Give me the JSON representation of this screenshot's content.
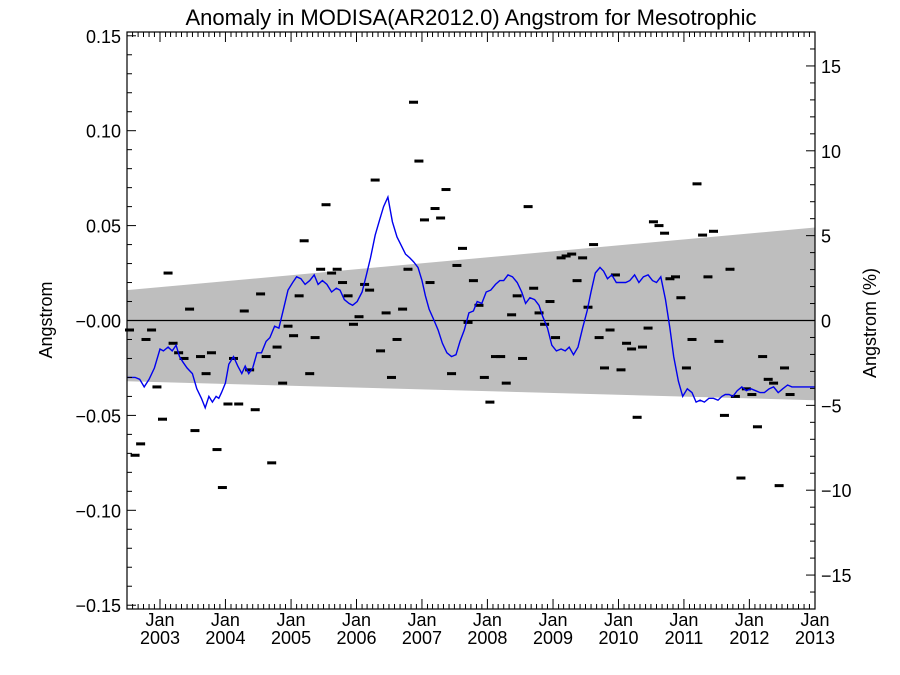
{
  "chart_data": {
    "type": "line",
    "title": "Anomaly in MODISA(AR2012.0) Angstrom for Mesotrophic",
    "ylabel": "Angstrom",
    "ylabel_right": "Angstrom (%)",
    "xlabel": "",
    "ylim": [
      -0.152,
      0.152
    ],
    "ylim_right": [
      -17,
      17
    ],
    "xlim": [
      "2002-07-01",
      "2013-01-01"
    ],
    "yticks": [
      -0.15,
      -0.1,
      -0.05,
      0.0,
      0.05,
      0.1,
      0.15
    ],
    "ytick_labels": [
      "−0.15",
      "−0.10",
      "−0.05",
      "−0.00",
      "0.05",
      "0.10",
      "0.15"
    ],
    "yticks_right": [
      -15,
      -10,
      -5,
      0,
      5,
      10,
      15
    ],
    "ytick_right_labels": [
      "−15",
      "−10",
      "−5",
      "0",
      "5",
      "10",
      "15"
    ],
    "xticks": [
      {
        "month": "Jan",
        "year": "2003",
        "date": "2003-01-01"
      },
      {
        "month": "Jan",
        "year": "2004",
        "date": "2004-01-01"
      },
      {
        "month": "Jan",
        "year": "2005",
        "date": "2005-01-01"
      },
      {
        "month": "Jan",
        "year": "2006",
        "date": "2006-01-01"
      },
      {
        "month": "Jan",
        "year": "2007",
        "date": "2007-01-01"
      },
      {
        "month": "Jan",
        "year": "2008",
        "date": "2008-01-01"
      },
      {
        "month": "Jan",
        "year": "2009",
        "date": "2009-01-01"
      },
      {
        "month": "Jan",
        "year": "2010",
        "date": "2010-01-01"
      },
      {
        "month": "Jan",
        "year": "2011",
        "date": "2011-01-01"
      },
      {
        "month": "Jan",
        "year": "2012",
        "date": "2012-01-01"
      },
      {
        "month": "Jan",
        "year": "2013",
        "date": "2013-01-01"
      }
    ],
    "band": {
      "x": [
        "2002-07-01",
        "2013-01-01"
      ],
      "upper": [
        0.016,
        0.049
      ],
      "lower": [
        -0.032,
        -0.042
      ],
      "color": "#bebebe"
    },
    "zero_line": 0.0,
    "series": [
      {
        "role": "monthly_anomaly_points",
        "color": "#000000",
        "marker": "errorbar",
        "points": [
          [
            "2002-07-15",
            -0.005
          ],
          [
            "2002-08-15",
            -0.071
          ],
          [
            "2002-09-15",
            -0.065
          ],
          [
            "2002-10-15",
            -0.01
          ],
          [
            "2002-11-15",
            -0.005
          ],
          [
            "2002-12-15",
            -0.035
          ],
          [
            "2003-01-15",
            -0.052
          ],
          [
            "2003-02-15",
            0.025
          ],
          [
            "2003-03-15",
            -0.012
          ],
          [
            "2003-04-15",
            -0.017
          ],
          [
            "2003-05-15",
            -0.02
          ],
          [
            "2003-06-15",
            0.006
          ],
          [
            "2003-07-15",
            -0.058
          ],
          [
            "2003-08-15",
            -0.019
          ],
          [
            "2003-09-15",
            -0.028
          ],
          [
            "2003-10-15",
            -0.017
          ],
          [
            "2003-11-15",
            -0.068
          ],
          [
            "2003-12-15",
            -0.088
          ],
          [
            "2004-01-15",
            -0.044
          ],
          [
            "2004-02-15",
            -0.02
          ],
          [
            "2004-03-15",
            -0.044
          ],
          [
            "2004-04-15",
            0.005
          ],
          [
            "2004-05-15",
            -0.026
          ],
          [
            "2004-06-15",
            -0.047
          ],
          [
            "2004-07-15",
            0.014
          ],
          [
            "2004-08-15",
            -0.019
          ],
          [
            "2004-09-15",
            -0.075
          ],
          [
            "2004-10-15",
            -0.014
          ],
          [
            "2004-11-15",
            -0.033
          ],
          [
            "2004-12-15",
            -0.003
          ],
          [
            "2005-01-15",
            -0.008
          ],
          [
            "2005-02-15",
            0.013
          ],
          [
            "2005-03-15",
            0.042
          ],
          [
            "2005-04-15",
            -0.028
          ],
          [
            "2005-05-15",
            -0.009
          ],
          [
            "2005-06-15",
            0.027
          ],
          [
            "2005-07-15",
            0.061
          ],
          [
            "2005-08-15",
            0.025
          ],
          [
            "2005-09-15",
            0.027
          ],
          [
            "2005-10-15",
            0.02
          ],
          [
            "2005-11-15",
            0.013
          ],
          [
            "2005-12-15",
            -0.002
          ],
          [
            "2006-01-15",
            0.002
          ],
          [
            "2006-02-15",
            0.019
          ],
          [
            "2006-03-15",
            0.016
          ],
          [
            "2006-04-15",
            0.074
          ],
          [
            "2006-05-15",
            -0.016
          ],
          [
            "2006-06-15",
            0.004
          ],
          [
            "2006-07-15",
            -0.03
          ],
          [
            "2006-08-15",
            -0.01
          ],
          [
            "2006-09-15",
            0.006
          ],
          [
            "2006-10-15",
            0.027
          ],
          [
            "2006-11-15",
            0.115
          ],
          [
            "2006-12-15",
            0.084
          ],
          [
            "2007-01-15",
            0.053
          ],
          [
            "2007-02-15",
            0.02
          ],
          [
            "2007-03-15",
            0.059
          ],
          [
            "2007-04-15",
            0.054
          ],
          [
            "2007-05-15",
            0.069
          ],
          [
            "2007-06-15",
            -0.028
          ],
          [
            "2007-07-15",
            0.029
          ],
          [
            "2007-08-15",
            0.038
          ],
          [
            "2007-09-15",
            -0.001
          ],
          [
            "2007-10-15",
            0.021
          ],
          [
            "2007-11-15",
            0.008
          ],
          [
            "2007-12-15",
            -0.03
          ],
          [
            "2008-01-15",
            -0.043
          ],
          [
            "2008-02-15",
            -0.019
          ],
          [
            "2008-03-15",
            -0.019
          ],
          [
            "2008-04-15",
            -0.033
          ],
          [
            "2008-05-15",
            0.003
          ],
          [
            "2008-06-15",
            0.013
          ],
          [
            "2008-07-15",
            -0.02
          ],
          [
            "2008-08-15",
            0.06
          ],
          [
            "2008-09-15",
            0.017
          ],
          [
            "2008-10-15",
            0.004
          ],
          [
            "2008-11-15",
            -0.002
          ],
          [
            "2008-12-15",
            0.01
          ],
          [
            "2009-01-15",
            -0.009
          ],
          [
            "2009-02-15",
            0.033
          ],
          [
            "2009-03-15",
            0.034
          ],
          [
            "2009-04-15",
            0.035
          ],
          [
            "2009-05-15",
            0.021
          ],
          [
            "2009-06-15",
            0.033
          ],
          [
            "2009-07-15",
            0.007
          ],
          [
            "2009-08-15",
            0.04
          ],
          [
            "2009-09-15",
            -0.009
          ],
          [
            "2009-10-15",
            -0.025
          ],
          [
            "2009-11-15",
            -0.005
          ],
          [
            "2009-12-15",
            0.024
          ],
          [
            "2010-01-15",
            -0.026
          ],
          [
            "2010-02-15",
            -0.012
          ],
          [
            "2010-03-15",
            -0.015
          ],
          [
            "2010-04-15",
            -0.051
          ],
          [
            "2010-05-15",
            -0.014
          ],
          [
            "2010-06-15",
            -0.004
          ],
          [
            "2010-07-15",
            0.052
          ],
          [
            "2010-08-15",
            0.05
          ],
          [
            "2010-09-15",
            0.046
          ],
          [
            "2010-10-15",
            0.022
          ],
          [
            "2010-11-15",
            0.023
          ],
          [
            "2010-12-15",
            0.012
          ],
          [
            "2011-01-15",
            -0.025
          ],
          [
            "2011-02-15",
            -0.01
          ],
          [
            "2011-03-15",
            0.072
          ],
          [
            "2011-04-15",
            0.045
          ],
          [
            "2011-05-15",
            0.023
          ],
          [
            "2011-06-15",
            0.047
          ],
          [
            "2011-07-15",
            -0.011
          ],
          [
            "2011-08-15",
            -0.05
          ],
          [
            "2011-09-15",
            0.027
          ],
          [
            "2011-10-15",
            -0.04
          ],
          [
            "2011-11-15",
            -0.083
          ],
          [
            "2011-12-15",
            -0.036
          ],
          [
            "2012-01-15",
            -0.039
          ],
          [
            "2012-02-15",
            -0.056
          ],
          [
            "2012-03-15",
            -0.019
          ],
          [
            "2012-04-15",
            -0.031
          ],
          [
            "2012-05-15",
            -0.033
          ],
          [
            "2012-06-15",
            -0.087
          ],
          [
            "2012-07-15",
            -0.025
          ],
          [
            "2012-08-15",
            -0.039
          ]
        ]
      },
      {
        "role": "smoothed_anomaly",
        "color": "#0000ee",
        "x": [
          "2002-07-01",
          "2002-08-15",
          "2002-09-10",
          "2002-10-05",
          "2002-11-01",
          "2002-12-01",
          "2003-01-01",
          "2003-01-20",
          "2003-02-15",
          "2003-03-10",
          "2003-04-01",
          "2003-04-20",
          "2003-05-10",
          "2003-06-01",
          "2003-07-01",
          "2003-07-25",
          "2003-08-20",
          "2003-09-10",
          "2003-10-01",
          "2003-10-20",
          "2003-11-10",
          "2003-11-25",
          "2003-12-10",
          "2004-01-01",
          "2004-01-20",
          "2004-02-15",
          "2004-03-10",
          "2004-04-01",
          "2004-04-20",
          "2004-05-10",
          "2004-06-01",
          "2004-06-25",
          "2004-07-20",
          "2004-08-15",
          "2004-09-05",
          "2004-10-01",
          "2004-10-25",
          "2004-11-20",
          "2004-12-15",
          "2005-01-10",
          "2005-02-01",
          "2005-02-25",
          "2005-03-20",
          "2005-04-15",
          "2005-05-10",
          "2005-06-01",
          "2005-06-25",
          "2005-07-20",
          "2005-08-15",
          "2005-09-10",
          "2005-10-01",
          "2005-10-25",
          "2005-11-20",
          "2005-12-10",
          "2006-01-05",
          "2006-02-01",
          "2006-02-25",
          "2006-03-20",
          "2006-04-15",
          "2006-05-10",
          "2006-06-01",
          "2006-06-25",
          "2006-07-20",
          "2006-08-15",
          "2006-09-05",
          "2006-10-01",
          "2006-10-25",
          "2006-11-15",
          "2006-12-10",
          "2007-01-01",
          "2007-01-20",
          "2007-02-10",
          "2007-03-05",
          "2007-04-01",
          "2007-04-25",
          "2007-05-20",
          "2007-06-15",
          "2007-07-10",
          "2007-08-01",
          "2007-08-25",
          "2007-09-20",
          "2007-10-15",
          "2007-11-05",
          "2007-12-01",
          "2007-12-25",
          "2008-01-20",
          "2008-02-15",
          "2008-03-10",
          "2008-04-01",
          "2008-04-25",
          "2008-05-20",
          "2008-06-15",
          "2008-07-10",
          "2008-08-01",
          "2008-08-25",
          "2008-09-20",
          "2008-10-15",
          "2008-11-05",
          "2008-12-01",
          "2008-12-25",
          "2009-01-20",
          "2009-02-15",
          "2009-03-10",
          "2009-04-01",
          "2009-04-25",
          "2009-05-20",
          "2009-06-15",
          "2009-07-10",
          "2009-08-01",
          "2009-08-25",
          "2009-09-20",
          "2009-10-10",
          "2009-11-01",
          "2009-11-25",
          "2009-12-20",
          "2010-01-15",
          "2010-02-10",
          "2010-03-05",
          "2010-04-01",
          "2010-04-25",
          "2010-05-20",
          "2010-06-15",
          "2010-07-10",
          "2010-08-01",
          "2010-08-25",
          "2010-09-20",
          "2010-10-15",
          "2010-11-05",
          "2010-12-01",
          "2010-12-25",
          "2011-01-20",
          "2011-02-15",
          "2011-03-10",
          "2011-04-01",
          "2011-04-25",
          "2011-05-20",
          "2011-06-15",
          "2011-07-10",
          "2011-08-01",
          "2011-08-20",
          "2011-09-10",
          "2011-10-01",
          "2011-10-25",
          "2011-11-20",
          "2011-12-15",
          "2012-01-10",
          "2012-02-05",
          "2012-03-01",
          "2012-03-25",
          "2012-04-20",
          "2012-05-15",
          "2012-06-10",
          "2012-07-05",
          "2012-08-01",
          "2012-08-25",
          "2012-09-20",
          "2012-10-15",
          "2012-11-10",
          "2012-12-05",
          "2013-01-01"
        ],
        "y": [
          -0.03,
          -0.03,
          -0.031,
          -0.035,
          -0.031,
          -0.025,
          -0.015,
          -0.016,
          -0.014,
          -0.016,
          -0.013,
          -0.019,
          -0.022,
          -0.025,
          -0.028,
          -0.036,
          -0.041,
          -0.046,
          -0.04,
          -0.043,
          -0.04,
          -0.041,
          -0.038,
          -0.033,
          -0.023,
          -0.019,
          -0.024,
          -0.028,
          -0.024,
          -0.028,
          -0.025,
          -0.017,
          -0.017,
          -0.011,
          -0.009,
          -0.003,
          -0.004,
          0.006,
          0.016,
          0.02,
          0.023,
          0.022,
          0.019,
          0.021,
          0.024,
          0.019,
          0.021,
          0.019,
          0.015,
          0.017,
          0.016,
          0.011,
          0.009,
          0.008,
          0.01,
          0.015,
          0.024,
          0.033,
          0.045,
          0.053,
          0.06,
          0.065,
          0.052,
          0.044,
          0.04,
          0.035,
          0.033,
          0.031,
          0.028,
          0.021,
          0.013,
          0.006,
          0.001,
          -0.005,
          -0.012,
          -0.017,
          -0.019,
          -0.018,
          -0.011,
          -0.005,
          0.004,
          0.005,
          0.01,
          0.009,
          0.015,
          0.016,
          0.019,
          0.021,
          0.021,
          0.024,
          0.023,
          0.02,
          0.015,
          0.009,
          0.012,
          0.011,
          0.008,
          0.002,
          -0.004,
          -0.013,
          -0.016,
          -0.015,
          -0.016,
          -0.014,
          -0.018,
          -0.014,
          -0.004,
          0.005,
          0.015,
          0.025,
          0.028,
          0.026,
          0.022,
          0.024,
          0.02,
          0.02,
          0.02,
          0.021,
          0.024,
          0.02,
          0.023,
          0.024,
          0.021,
          0.02,
          0.023,
          0.011,
          -0.004,
          -0.019,
          -0.032,
          -0.04,
          -0.036,
          -0.038,
          -0.043,
          -0.042,
          -0.043,
          -0.041,
          -0.041,
          -0.042,
          -0.04,
          -0.039,
          -0.039,
          -0.04,
          -0.037,
          -0.035,
          -0.037,
          -0.036,
          -0.037,
          -0.038,
          -0.038,
          -0.036,
          -0.035,
          -0.038,
          -0.036,
          -0.034,
          -0.035,
          -0.035,
          -0.035,
          -0.035,
          -0.035,
          -0.035
        ]
      }
    ]
  }
}
